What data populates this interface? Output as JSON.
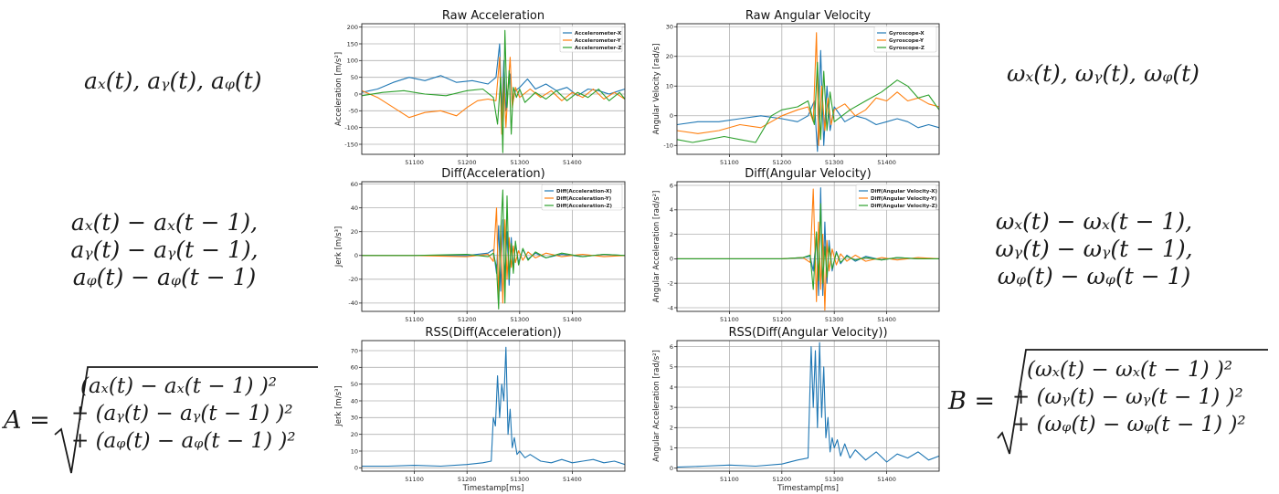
{
  "equations": {
    "acc_raw": "aₓ(t), aᵧ(t), aᵩ(t)",
    "gyro_raw": "ωₓ(t), ωᵧ(t), ωᵩ(t)",
    "acc_diff": [
      "aₓ(t) − aₓ(t − 1),",
      "aᵧ(t) − aᵧ(t − 1),",
      "aᵩ(t) − aᵩ(t − 1)"
    ],
    "gyro_diff": [
      "ωₓ(t) − ωₓ(t − 1),",
      "ωᵧ(t) − ωᵧ(t − 1),",
      "ωᵩ(t) − ωᵩ(t − 1)"
    ],
    "acc_rss_lhs": "A =",
    "acc_rss": [
      "(aₓ(t) − aₓ(t − 1) )²",
      "+ (aᵧ(t) − aᵧ(t − 1) )²",
      "+ (aᵩ(t) − aᵩ(t − 1) )²"
    ],
    "gyro_rss_lhs": "B =",
    "gyro_rss": [
      "(ωₓ(t) − ωₓ(t − 1) )²",
      "+ (ωᵧ(t) − ωᵧ(t − 1) )²",
      "+ (ωᵩ(t) − ωᵩ(t − 1) )²"
    ]
  },
  "colors": {
    "x": "#1f77b4",
    "y": "#ff7f0e",
    "z": "#2ca02c",
    "grid": "#b0b0b0"
  },
  "chart_data": [
    {
      "id": "raw-acc",
      "type": "line",
      "title": "Raw Acceleration",
      "xlabel": "",
      "ylabel": "Acceleration [m/s²]",
      "xlim": [
        51000,
        51500
      ],
      "ylim": [
        -180,
        210
      ],
      "xticks": [
        51100,
        51200,
        51300,
        51400
      ],
      "yticks": [
        -150,
        -100,
        -50,
        0,
        50,
        100,
        150,
        200
      ],
      "grid": true,
      "legend": "top-right",
      "series": [
        {
          "name": "Accelerometer-X",
          "x": [
            51000,
            51030,
            51060,
            51090,
            51120,
            51150,
            51180,
            51210,
            51240,
            51255,
            51262,
            51266,
            51270,
            51274,
            51278,
            51282,
            51286,
            51292,
            51300,
            51315,
            51330,
            51350,
            51370,
            51390,
            51410,
            51430,
            51450,
            51470,
            51490,
            51500
          ],
          "values": [
            5,
            15,
            35,
            50,
            40,
            55,
            35,
            40,
            30,
            50,
            150,
            -60,
            100,
            -50,
            20,
            60,
            -30,
            10,
            20,
            45,
            15,
            30,
            10,
            20,
            -5,
            15,
            10,
            0,
            10,
            15
          ]
        },
        {
          "name": "Accelerometer-Y",
          "x": [
            51000,
            51030,
            51060,
            51090,
            51120,
            51150,
            51180,
            51200,
            51220,
            51240,
            51255,
            51262,
            51266,
            51270,
            51274,
            51278,
            51282,
            51286,
            51292,
            51300,
            51320,
            51340,
            51360,
            51380,
            51400,
            51420,
            51440,
            51460,
            51480,
            51500
          ],
          "values": [
            10,
            -10,
            -40,
            -70,
            -55,
            -50,
            -65,
            -40,
            -20,
            -15,
            -20,
            110,
            -120,
            50,
            -100,
            20,
            110,
            -40,
            20,
            -10,
            15,
            -10,
            10,
            -20,
            5,
            -10,
            15,
            -15,
            5,
            -15
          ]
        },
        {
          "name": "Accelerometer-Z",
          "x": [
            51000,
            51040,
            51080,
            51120,
            51160,
            51200,
            51230,
            51250,
            51258,
            51264,
            51268,
            51272,
            51276,
            51280,
            51284,
            51288,
            51294,
            51300,
            51310,
            51330,
            51350,
            51370,
            51390,
            51410,
            51430,
            51450,
            51470,
            51490,
            51500
          ],
          "values": [
            -5,
            5,
            10,
            0,
            -5,
            10,
            15,
            -10,
            -90,
            50,
            -175,
            190,
            -40,
            70,
            -120,
            20,
            -10,
            15,
            -25,
            5,
            -15,
            10,
            -20,
            5,
            -10,
            15,
            -20,
            5,
            -15
          ]
        }
      ]
    },
    {
      "id": "raw-gyro",
      "type": "line",
      "title": "Raw Angular Velocity",
      "xlabel": "",
      "ylabel": "Angular Velocity [rad/s]",
      "xlim": [
        51000,
        51500
      ],
      "ylim": [
        -13,
        31
      ],
      "xticks": [
        51100,
        51200,
        51300,
        51400
      ],
      "yticks": [
        -10,
        0,
        10,
        20,
        30
      ],
      "grid": true,
      "legend": "top-right",
      "series": [
        {
          "name": "Gyroscope-X",
          "x": [
            51000,
            51040,
            51080,
            51120,
            51160,
            51200,
            51230,
            51250,
            51262,
            51268,
            51274,
            51280,
            51286,
            51292,
            51300,
            51320,
            51340,
            51360,
            51380,
            51400,
            51420,
            51440,
            51460,
            51480,
            51500
          ],
          "values": [
            -3,
            -2,
            -2,
            -1,
            0,
            -1,
            -2,
            0,
            5,
            -12,
            22,
            -10,
            10,
            -5,
            3,
            -2,
            0,
            -1,
            -3,
            -2,
            -1,
            -2,
            -4,
            -3,
            -4
          ]
        },
        {
          "name": "Gyroscope-Y",
          "x": [
            51000,
            51040,
            51080,
            51120,
            51160,
            51200,
            51230,
            51250,
            51260,
            51266,
            51270,
            51276,
            51282,
            51288,
            51294,
            51300,
            51320,
            51340,
            51360,
            51380,
            51400,
            51420,
            51440,
            51460,
            51480,
            51500
          ],
          "values": [
            -5,
            -6,
            -5,
            -3,
            -4,
            0,
            2,
            3,
            -2,
            28,
            -10,
            10,
            -5,
            6,
            -3,
            2,
            4,
            0,
            2,
            6,
            5,
            8,
            5,
            6,
            4,
            3
          ]
        },
        {
          "name": "Gyroscope-Z",
          "x": [
            51000,
            51030,
            51060,
            51090,
            51120,
            51150,
            51180,
            51200,
            51230,
            51250,
            51262,
            51268,
            51274,
            51280,
            51286,
            51292,
            51300,
            51330,
            51360,
            51390,
            51420,
            51440,
            51460,
            51480,
            51500
          ],
          "values": [
            -8,
            -9,
            -8,
            -7,
            -8,
            -9,
            0,
            2,
            3,
            5,
            -3,
            18,
            -8,
            15,
            -5,
            8,
            -2,
            2,
            5,
            8,
            12,
            10,
            6,
            7,
            2
          ]
        }
      ]
    },
    {
      "id": "diff-acc",
      "type": "line",
      "title": "Diff(Acceleration)",
      "xlabel": "",
      "ylabel": "Jerk [m/s³]",
      "xlim": [
        51000,
        51500
      ],
      "ylim": [
        -47,
        62
      ],
      "xticks": [
        51100,
        51200,
        51300,
        51400
      ],
      "yticks": [
        -40,
        -20,
        0,
        20,
        40,
        60
      ],
      "grid": true,
      "legend": "top-right",
      "series": [
        {
          "name": "Diff(Acceleration-X)",
          "x": [
            51000,
            51100,
            51200,
            51240,
            51250,
            51256,
            51260,
            51264,
            51268,
            51272,
            51276,
            51280,
            51284,
            51288,
            51292,
            51298,
            51306,
            51316,
            51330,
            51350,
            51380,
            51420,
            51460,
            51500
          ],
          "values": [
            0,
            0,
            0,
            2,
            5,
            -15,
            25,
            -30,
            30,
            -20,
            20,
            -25,
            15,
            -12,
            10,
            -6,
            5,
            -3,
            2,
            -2,
            1,
            -1,
            1,
            0
          ]
        },
        {
          "name": "Diff(Acceleration-Y)",
          "x": [
            51000,
            51100,
            51200,
            51240,
            51250,
            51256,
            51260,
            51264,
            51268,
            51272,
            51276,
            51280,
            51284,
            51288,
            51292,
            51298,
            51306,
            51316,
            51330,
            51350,
            51380,
            51420,
            51460,
            51500
          ],
          "values": [
            0,
            0,
            -1,
            1,
            -5,
            40,
            -35,
            25,
            -40,
            30,
            -20,
            15,
            -10,
            8,
            -6,
            4,
            -4,
            3,
            -2,
            2,
            -1,
            1,
            -1,
            0
          ]
        },
        {
          "name": "Diff(Acceleration-Z)",
          "x": [
            51000,
            51100,
            51200,
            51240,
            51250,
            51256,
            51260,
            51264,
            51268,
            51272,
            51276,
            51280,
            51284,
            51288,
            51292,
            51298,
            51306,
            51316,
            51330,
            51350,
            51380,
            51420,
            51460,
            51500
          ],
          "values": [
            0,
            0,
            1,
            -1,
            2,
            -10,
            -45,
            20,
            55,
            -40,
            50,
            -20,
            10,
            -15,
            12,
            -8,
            6,
            -4,
            3,
            -2,
            2,
            -1,
            1,
            0
          ]
        }
      ]
    },
    {
      "id": "diff-gyro",
      "type": "line",
      "title": "Diff(Angular Velocity)",
      "xlabel": "",
      "ylabel": "Angular Acceleration [rad/s²]",
      "xlim": [
        51000,
        51500
      ],
      "ylim": [
        -4.3,
        6.3
      ],
      "xticks": [
        51100,
        51200,
        51300,
        51400
      ],
      "yticks": [
        -4,
        -2,
        0,
        2,
        4,
        6
      ],
      "grid": true,
      "legend": "top-right",
      "series": [
        {
          "name": "Diff(Angular Velocity-X)",
          "x": [
            51000,
            51100,
            51200,
            51240,
            51254,
            51260,
            51266,
            51270,
            51274,
            51278,
            51282,
            51286,
            51290,
            51296,
            51304,
            51312,
            51324,
            51340,
            51360,
            51390,
            51420,
            51460,
            51500
          ],
          "values": [
            0,
            0,
            0,
            0.1,
            0.2,
            -1,
            2,
            -3,
            5.8,
            -3,
            3,
            -2,
            1.5,
            -1,
            0.6,
            -0.4,
            0.3,
            -0.2,
            0.2,
            -0.1,
            0.1,
            0,
            0
          ]
        },
        {
          "name": "Diff(Angular Velocity-Y)",
          "x": [
            51000,
            51100,
            51200,
            51240,
            51254,
            51260,
            51266,
            51270,
            51274,
            51278,
            51282,
            51286,
            51290,
            51296,
            51304,
            51312,
            51324,
            51340,
            51360,
            51390,
            51420,
            51460,
            51500
          ],
          "values": [
            0,
            0,
            0,
            0.1,
            -0.3,
            5.7,
            -3.5,
            3,
            -2.5,
            2,
            -4.2,
            1.5,
            -1,
            0.8,
            -0.5,
            0.4,
            -0.2,
            0.3,
            -0.2,
            0.1,
            -0.1,
            0.1,
            0
          ]
        },
        {
          "name": "Diff(Angular Velocity-Z)",
          "x": [
            51000,
            51100,
            51200,
            51240,
            51254,
            51260,
            51266,
            51270,
            51274,
            51278,
            51282,
            51286,
            51290,
            51296,
            51304,
            51312,
            51324,
            51340,
            51360,
            51390,
            51420,
            51460,
            51500
          ],
          "values": [
            0,
            0,
            0,
            0.1,
            0.3,
            -2.5,
            2.2,
            -1.8,
            4.5,
            -2,
            1,
            -1.5,
            1,
            -0.8,
            0.5,
            -0.3,
            0.2,
            -0.1,
            0.1,
            -0.1,
            0.1,
            0,
            0
          ]
        }
      ]
    },
    {
      "id": "rss-acc",
      "type": "line",
      "title": "RSS(Diff(Acceleration))",
      "xlabel": "Timestamp[ms]",
      "ylabel": "Jerk [m/s³]",
      "xlim": [
        51000,
        51500
      ],
      "ylim": [
        -2,
        76
      ],
      "xticks": [
        51100,
        51200,
        51300,
        51400
      ],
      "yticks": [
        0,
        10,
        20,
        30,
        40,
        50,
        60,
        70
      ],
      "grid": true,
      "legend": "none",
      "series": [
        {
          "name": "",
          "x": [
            51000,
            51050,
            51100,
            51150,
            51200,
            51230,
            51246,
            51250,
            51254,
            51258,
            51262,
            51266,
            51270,
            51274,
            51278,
            51282,
            51286,
            51290,
            51295,
            51300,
            51310,
            51320,
            51340,
            51360,
            51380,
            51400,
            51420,
            51440,
            51460,
            51480,
            51500
          ],
          "values": [
            1,
            1,
            1.5,
            1,
            2,
            3,
            4,
            30,
            25,
            55,
            30,
            50,
            40,
            72,
            20,
            35,
            12,
            18,
            8,
            10,
            6,
            8,
            4,
            3,
            5,
            3,
            4,
            5,
            3,
            4,
            2
          ]
        }
      ]
    },
    {
      "id": "rss-gyro",
      "type": "line",
      "title": "RSS(Diff(Angular Velocity))",
      "xlabel": "Timestamp[ms]",
      "ylabel": "Angular Acceleration [rad/s²]",
      "xlim": [
        51000,
        51500
      ],
      "ylim": [
        -0.15,
        6.3
      ],
      "xticks": [
        51100,
        51200,
        51300,
        51400
      ],
      "yticks": [
        0,
        1,
        2,
        3,
        4,
        5,
        6
      ],
      "grid": true,
      "legend": "none",
      "series": [
        {
          "name": "",
          "x": [
            51000,
            51050,
            51100,
            51150,
            51200,
            51230,
            51250,
            51256,
            51260,
            51264,
            51268,
            51272,
            51276,
            51280,
            51284,
            51288,
            51292,
            51296,
            51300,
            51306,
            51312,
            51320,
            51330,
            51340,
            51360,
            51380,
            51400,
            51420,
            51440,
            51460,
            51480,
            51500
          ],
          "values": [
            0.05,
            0.1,
            0.15,
            0.1,
            0.2,
            0.4,
            0.5,
            6,
            3,
            5.8,
            2,
            6.2,
            2.5,
            5,
            1.5,
            2.5,
            0.8,
            1.5,
            1,
            1.4,
            0.6,
            1.2,
            0.5,
            0.9,
            0.4,
            0.8,
            0.3,
            0.7,
            0.5,
            0.8,
            0.4,
            0.6
          ]
        }
      ]
    }
  ]
}
